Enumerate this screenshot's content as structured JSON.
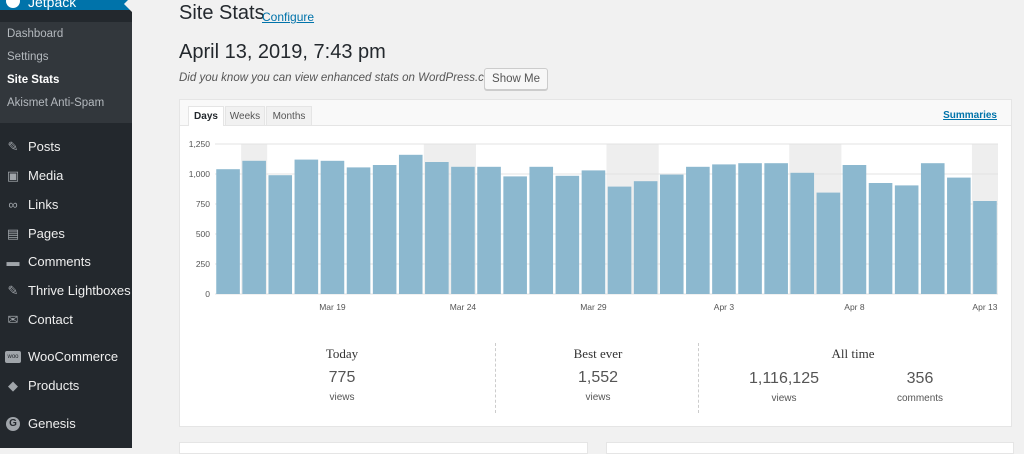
{
  "sidebar": {
    "top_label": "Jetpack",
    "submenu": [
      {
        "label": "Dashboard",
        "current": false
      },
      {
        "label": "Settings",
        "current": false
      },
      {
        "label": "Site Stats",
        "current": true
      },
      {
        "label": "Akismet Anti-Spam",
        "current": false
      }
    ],
    "menu": [
      {
        "label": "Posts",
        "icon": "pin-icon",
        "glyph": "✎"
      },
      {
        "label": "Media",
        "icon": "media-icon",
        "glyph": "▣"
      },
      {
        "label": "Links",
        "icon": "link-icon",
        "glyph": "∞"
      },
      {
        "label": "Pages",
        "icon": "pages-icon",
        "glyph": "▤"
      },
      {
        "label": "Comments",
        "icon": "comment-icon",
        "glyph": "▬"
      },
      {
        "label": "Thrive Lightboxes",
        "icon": "pin-icon",
        "glyph": "✎"
      },
      {
        "label": "Contact",
        "icon": "mail-icon",
        "glyph": "✉"
      },
      {
        "label": "WooCommerce",
        "icon": "woocommerce-icon",
        "glyph": "woo"
      },
      {
        "label": "Products",
        "icon": "box-icon",
        "glyph": "◆"
      },
      {
        "label": "Genesis",
        "icon": "genesis-icon",
        "glyph": "G"
      }
    ]
  },
  "header": {
    "title": "Site Stats",
    "configure_label": "Configure",
    "date": "April 13, 2019, 7:43 pm",
    "promo_text": "Did you know you can view enhanced stats on WordPress.com?",
    "show_me_label": "Show Me"
  },
  "tabs": [
    {
      "label": "Days",
      "active": true
    },
    {
      "label": "Weeks",
      "active": false
    },
    {
      "label": "Months",
      "active": false
    }
  ],
  "summaries_label": "Summaries",
  "chart_data": {
    "type": "bar",
    "x_tick_labels": [
      "Mar 19",
      "Mar 24",
      "Mar 29",
      "Apr 3",
      "Apr 8",
      "Apr 13"
    ],
    "y_ticks": [
      "1,250",
      "1,000",
      "750",
      "500",
      "250",
      "0"
    ],
    "ylim": [
      0,
      1250
    ],
    "grid": true,
    "categories": [
      "Mar 15",
      "Mar 16",
      "Mar 17",
      "Mar 18",
      "Mar 19",
      "Mar 20",
      "Mar 21",
      "Mar 22",
      "Mar 23",
      "Mar 24",
      "Mar 25",
      "Mar 26",
      "Mar 27",
      "Mar 28",
      "Mar 29",
      "Mar 30",
      "Mar 31",
      "Apr 1",
      "Apr 2",
      "Apr 3",
      "Apr 4",
      "Apr 5",
      "Apr 6",
      "Apr 7",
      "Apr 8",
      "Apr 9",
      "Apr 10",
      "Apr 11",
      "Apr 12",
      "Apr 13"
    ],
    "values": [
      1040,
      1110,
      990,
      1120,
      1110,
      1055,
      1075,
      1160,
      1100,
      1060,
      1060,
      980,
      1060,
      985,
      1030,
      895,
      940,
      995,
      1060,
      1080,
      1090,
      1090,
      1010,
      845,
      1075,
      925,
      905,
      1090,
      970,
      775
    ],
    "weekend_bands": [
      [
        0.5,
        1.5
      ],
      [
        7.5,
        9.5
      ],
      [
        14.5,
        16.5
      ],
      [
        21.5,
        23.5
      ],
      [
        28.5,
        29.5
      ]
    ],
    "bar_color": "#8cb8cf"
  },
  "stats": {
    "today": {
      "heading": "Today",
      "value": "775",
      "unit": "views"
    },
    "best_ever": {
      "heading": "Best ever",
      "value": "1,552",
      "unit": "views"
    },
    "all_time": {
      "heading": "All time",
      "views_value": "1,116,125",
      "views_unit": "views",
      "comments_value": "356",
      "comments_unit": "comments"
    }
  }
}
